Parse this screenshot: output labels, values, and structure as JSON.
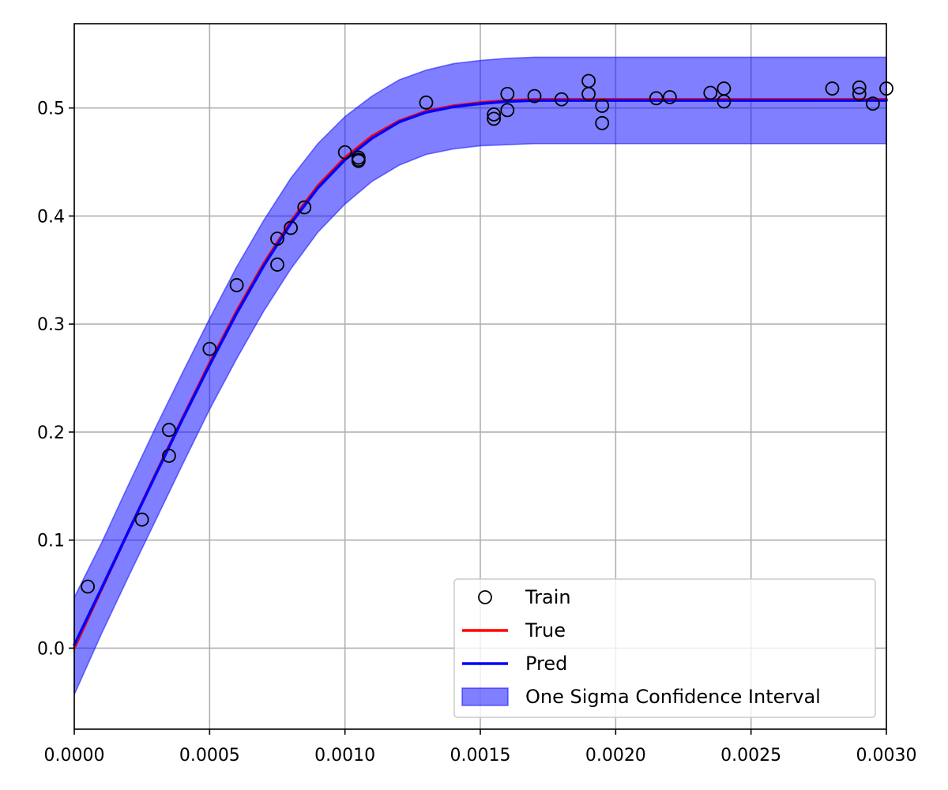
{
  "chart_data": {
    "type": "line",
    "title": "",
    "xlabel": "",
    "ylabel": "",
    "xlim": [
      0.0,
      0.003
    ],
    "ylim": [
      -0.075,
      0.578
    ],
    "xticks": [
      0.0,
      0.0005,
      0.001,
      0.0015,
      0.002,
      0.0025,
      0.003
    ],
    "xtick_labels": [
      "0.0000",
      "0.0005",
      "0.0010",
      "0.0015",
      "0.0020",
      "0.0025",
      "0.0030"
    ],
    "yticks": [
      0.0,
      0.1,
      0.2,
      0.3,
      0.4,
      0.5
    ],
    "ytick_labels": [
      "0.0",
      "0.1",
      "0.2",
      "0.3",
      "0.4",
      "0.5"
    ],
    "grid": true,
    "legend_position": "lower-right",
    "colors": {
      "train": "#000000",
      "true": "#ff0000",
      "pred": "#0000ff",
      "band_fill": "#0000ff",
      "grid": "#b0b0b0"
    },
    "series": [
      {
        "name": "Train",
        "kind": "scatter",
        "x": [
          5e-05,
          0.00025,
          0.00035,
          0.00035,
          0.0005,
          0.0006,
          0.00075,
          0.00075,
          0.0008,
          0.00085,
          0.001,
          0.00105,
          0.00105,
          0.00105,
          0.0013,
          0.00155,
          0.00155,
          0.0016,
          0.0016,
          0.0017,
          0.0018,
          0.0019,
          0.0019,
          0.00195,
          0.00195,
          0.00215,
          0.0022,
          0.00235,
          0.0024,
          0.0024,
          0.0028,
          0.0029,
          0.0029,
          0.00295,
          0.003
        ],
        "y": [
          0.057,
          0.119,
          0.202,
          0.178,
          0.277,
          0.336,
          0.379,
          0.355,
          0.389,
          0.408,
          0.459,
          0.454,
          0.451,
          0.452,
          0.505,
          0.494,
          0.49,
          0.513,
          0.498,
          0.511,
          0.508,
          0.525,
          0.513,
          0.502,
          0.486,
          0.509,
          0.51,
          0.514,
          0.518,
          0.506,
          0.518,
          0.519,
          0.513,
          0.504,
          0.518
        ]
      },
      {
        "name": "True",
        "kind": "line",
        "x": [
          0.0,
          0.0001,
          0.0002,
          0.0003,
          0.0004,
          0.0005,
          0.0006,
          0.0007,
          0.0008,
          0.0009,
          0.001,
          0.0011,
          0.0012,
          0.0013,
          0.0014,
          0.0015,
          0.0016,
          0.0017,
          0.0018,
          0.0019,
          0.002,
          0.0022,
          0.0024,
          0.0026,
          0.0028,
          0.003
        ],
        "y": [
          0.0,
          0.054,
          0.108,
          0.161,
          0.213,
          0.264,
          0.312,
          0.356,
          0.395,
          0.428,
          0.454,
          0.474,
          0.488,
          0.497,
          0.502,
          0.505,
          0.507,
          0.508,
          0.508,
          0.508,
          0.508,
          0.508,
          0.508,
          0.508,
          0.508,
          0.508
        ]
      },
      {
        "name": "Pred",
        "kind": "line",
        "x": [
          0.0,
          0.0001,
          0.0002,
          0.0003,
          0.0004,
          0.0005,
          0.0006,
          0.0007,
          0.0008,
          0.0009,
          0.001,
          0.0011,
          0.0012,
          0.0013,
          0.0014,
          0.0015,
          0.0016,
          0.0017,
          0.0018,
          0.0019,
          0.002,
          0.0022,
          0.0024,
          0.0026,
          0.0028,
          0.003
        ],
        "y": [
          0.003,
          0.055,
          0.108,
          0.16,
          0.212,
          0.262,
          0.31,
          0.354,
          0.393,
          0.426,
          0.452,
          0.472,
          0.487,
          0.496,
          0.501,
          0.504,
          0.506,
          0.507,
          0.507,
          0.507,
          0.507,
          0.507,
          0.507,
          0.507,
          0.507,
          0.507
        ]
      },
      {
        "name": "One Sigma Confidence Interval",
        "kind": "band",
        "x": [
          0.0,
          0.0001,
          0.0002,
          0.0003,
          0.0004,
          0.0005,
          0.0006,
          0.0007,
          0.0008,
          0.0009,
          0.001,
          0.0011,
          0.0012,
          0.0013,
          0.0014,
          0.0015,
          0.0016,
          0.0017,
          0.0018,
          0.0019,
          0.002,
          0.0022,
          0.0024,
          0.0026,
          0.0028,
          0.003
        ],
        "upper": [
          0.047,
          0.097,
          0.151,
          0.204,
          0.255,
          0.305,
          0.353,
          0.396,
          0.435,
          0.467,
          0.492,
          0.511,
          0.526,
          0.535,
          0.541,
          0.544,
          0.546,
          0.547,
          0.547,
          0.547,
          0.547,
          0.547,
          0.547,
          0.547,
          0.547,
          0.547
        ],
        "lower": [
          -0.043,
          0.013,
          0.066,
          0.118,
          0.17,
          0.221,
          0.268,
          0.312,
          0.351,
          0.385,
          0.411,
          0.432,
          0.447,
          0.457,
          0.462,
          0.465,
          0.466,
          0.467,
          0.467,
          0.467,
          0.467,
          0.467,
          0.467,
          0.467,
          0.467,
          0.467
        ]
      }
    ]
  }
}
